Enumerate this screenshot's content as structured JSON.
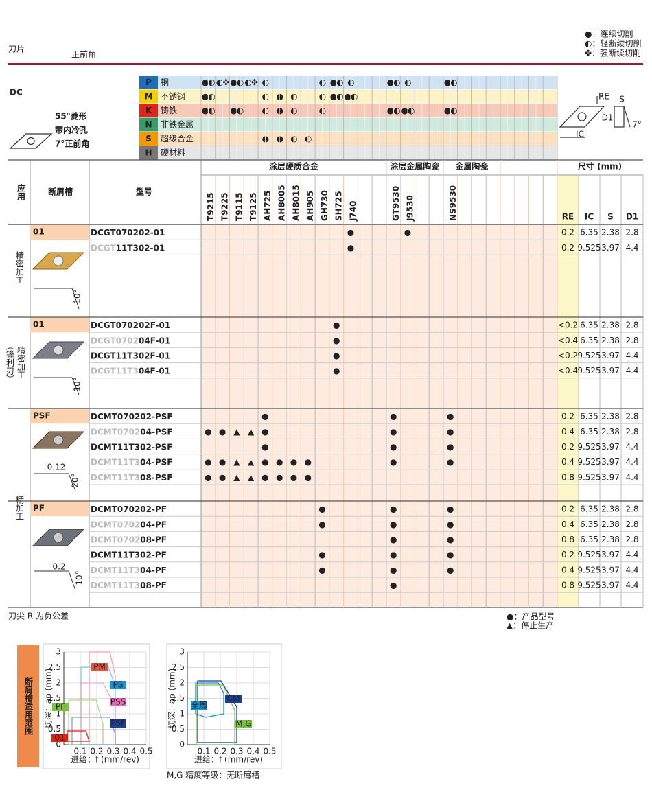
{
  "header": {
    "title": "刀片",
    "subtitle": "正前角",
    "legend": [
      "●：连续切削",
      "◐：轻断续切削",
      "✤：强断续切削"
    ]
  },
  "insert": {
    "code": "DC",
    "description": [
      "55°菱形",
      "带内冷孔",
      "7°正前角"
    ],
    "dims": [
      "RE",
      "S",
      "D1",
      "IC",
      "7°"
    ]
  },
  "materials": [
    {
      "code": "P",
      "name": "钢",
      "marks": {
        "0": "●◐",
        "1": "◐✤",
        "2": "●◐",
        "3": "◐✤",
        "4": "◐",
        "8": "◐",
        "9": "●◐",
        "10": "◐",
        "13": "●◐",
        "14": "◐",
        "17": "●◐"
      }
    },
    {
      "code": "M",
      "name": "不锈钢",
      "marks": {
        "0": "●◐",
        "4": "◐",
        "5": "●",
        "6": "◐",
        "8": "◐",
        "9": "●◐",
        "10": "●◐"
      }
    },
    {
      "code": "K",
      "name": "铸铁",
      "marks": {
        "0": "●◐",
        "2": "●◐",
        "4": "◐",
        "5": "●",
        "6": "◐",
        "8": "◐",
        "13": "●◐",
        "14": "●◐",
        "17": "●◐"
      }
    },
    {
      "code": "N",
      "name": "非铁金属"
    },
    {
      "code": "S",
      "name": "超级合金",
      "marks": {
        "4": "●",
        "5": "●",
        "6": "◐",
        "7": "◐"
      }
    },
    {
      "code": "H",
      "name": "硬材料"
    }
  ],
  "table": {
    "headers": {
      "application": "应用",
      "chipbreaker": "断屑槽",
      "model": "型号",
      "size": "尺寸 (mm)",
      "dims": [
        "RE",
        "IC",
        "S",
        "D1"
      ]
    },
    "grade_groups": [
      {
        "name": "涂层硬质合金",
        "grades": [
          "T9215",
          "T9225",
          "T9115",
          "T9125",
          "AH725",
          "AH8005",
          "AH8015",
          "AH905",
          "GH730",
          "SH725",
          "J740",
          null,
          null
        ]
      },
      {
        "name": "涂层金属陶瓷",
        "grades": [
          "GT9530",
          "J9530",
          null,
          null
        ]
      },
      {
        "name": "金属陶瓷",
        "grades": [
          "NS9530",
          null,
          null,
          null
        ]
      },
      {
        "name": null,
        "grades": [
          null,
          null,
          null,
          null
        ]
      }
    ],
    "applications": [
      "精密加工",
      "（锋利刃）",
      "精密加工",
      "精加工"
    ],
    "groups": [
      {
        "chipbreaker": "01",
        "labels": [
          "10°"
        ],
        "rows": [
          {
            "model": [
              "DCGT070202-01"
            ],
            "marks": {
              "10": "●",
              "14": "●"
            },
            "dims": [
              0.2,
              6.35,
              2.38,
              2.8
            ]
          },
          {
            "model": [
              "DCGT",
              "11T302-01"
            ],
            "marks": {
              "10": "●"
            },
            "dims": [
              0.2,
              9.525,
              3.97,
              4.4
            ]
          }
        ]
      },
      {
        "chipbreaker": "01",
        "labels": [
          "10°"
        ],
        "rows": [
          {
            "model": [
              "DCGT070202F-01"
            ],
            "marks": {
              "9": "●"
            },
            "dims": [
              "<0.2",
              6.35,
              2.38,
              2.8
            ]
          },
          {
            "model": [
              "DCGT0702",
              "04F-01"
            ],
            "marks": {
              "9": "●"
            },
            "dims": [
              "<0.4",
              6.35,
              2.38,
              2.8
            ]
          },
          {
            "model": [
              "DCGT11T302F-01"
            ],
            "marks": {
              "9": "●"
            },
            "dims": [
              "<0.2",
              9.525,
              3.97,
              4.4
            ]
          },
          {
            "model": [
              "DCGT11T3",
              "04F-01"
            ],
            "marks": {
              "9": "●"
            },
            "dims": [
              "<0.4",
              9.525,
              3.97,
              4.4
            ]
          }
        ]
      },
      {
        "chipbreaker": "PSF",
        "labels": [
          "0.12",
          "20°"
        ],
        "rows": [
          {
            "model": [
              "DCMT070202-PSF"
            ],
            "marks": {
              "4": "●",
              "13": "●",
              "17": "●"
            },
            "dims": [
              0.2,
              6.35,
              2.38,
              2.8
            ]
          },
          {
            "model": [
              "DCMT0702",
              "04-PSF"
            ],
            "marks": {
              "0": "●",
              "1": "●",
              "2": "▲",
              "3": "▲",
              "4": "●",
              "13": "●",
              "17": "●"
            },
            "dims": [
              0.4,
              6.35,
              2.38,
              2.8
            ]
          },
          {
            "model": [
              "DCMT11T302-PSF"
            ],
            "marks": {
              "4": "●",
              "13": "●",
              "17": "●"
            },
            "dims": [
              0.2,
              9.525,
              3.97,
              4.4
            ]
          },
          {
            "model": [
              "DCMT11T3",
              "04-PSF"
            ],
            "marks": {
              "0": "●",
              "1": "●",
              "2": "▲",
              "3": "▲",
              "4": "●",
              "5": "●",
              "6": "●",
              "7": "●",
              "13": "●",
              "17": "●"
            },
            "dims": [
              0.4,
              9.525,
              3.97,
              4.4
            ]
          },
          {
            "model": [
              "DCMT11T3",
              "08-PSF"
            ],
            "marks": {
              "0": "●",
              "1": "●",
              "2": "▲",
              "3": "▲",
              "4": "●",
              "5": "●",
              "6": "●",
              "7": "●"
            },
            "dims": [
              0.8,
              9.525,
              3.97,
              4.4
            ]
          }
        ]
      },
      {
        "chipbreaker": "PF",
        "labels": [
          "0.2",
          "10°"
        ],
        "rows": [
          {
            "model": [
              "DCMT070202-PF"
            ],
            "marks": {
              "8": "●",
              "13": "●",
              "17": "●"
            },
            "dims": [
              0.2,
              6.35,
              2.38,
              2.8
            ]
          },
          {
            "model": [
              "DCMT0702",
              "04-PF"
            ],
            "marks": {
              "8": "●",
              "13": "●",
              "17": "●"
            },
            "dims": [
              0.4,
              6.35,
              2.38,
              2.8
            ]
          },
          {
            "model": [
              "DCMT0702",
              "08-PF"
            ],
            "marks": {
              "13": "●",
              "17": "●"
            },
            "dims": [
              0.8,
              6.35,
              2.38,
              2.8
            ]
          },
          {
            "model": [
              "DCMT11T302-PF"
            ],
            "marks": {
              "8": "●",
              "13": "●",
              "17": "●"
            },
            "dims": [
              0.2,
              9.525,
              3.97,
              4.4
            ]
          },
          {
            "model": [
              "DCMT11T3",
              "04-PF"
            ],
            "marks": {
              "8": "●",
              "13": "●",
              "17": "●"
            },
            "dims": [
              0.4,
              9.525,
              3.97,
              4.4
            ]
          },
          {
            "model": [
              "DCMT11T3",
              "08-PF"
            ],
            "marks": {
              "13": "●"
            },
            "dims": [
              0.8,
              9.525,
              3.97,
              4.4
            ]
          }
        ]
      }
    ]
  },
  "notes": {
    "tolerance": "刀尖 R 为负公差",
    "symbols": [
      "●：产品型号",
      "▲：停止生产"
    ]
  },
  "charts": {
    "title": "断屑槽适用范围",
    "note": "M,G 精度等级：无断屑槽",
    "items": [
      {
        "ylabel": "切深：ap (mm)",
        "xlabel": "进给：f (mm/rev)",
        "xlim": [
          0,
          0.5
        ],
        "ylim": [
          0,
          3
        ],
        "xticks": [
          0.1,
          0.2,
          0.3,
          0.4,
          0.5
        ],
        "yticks": [
          0,
          0.5,
          1,
          1.5,
          2,
          2.5,
          3
        ],
        "regions": [
          {
            "name": "PM",
            "color": "#e8513d"
          },
          {
            "name": "PS",
            "color": "#1a8fd0"
          },
          {
            "name": "PSS",
            "color": "#e06ab5"
          },
          {
            "name": "PF",
            "color": "#7cc242"
          },
          {
            "name": "PSF",
            "color": "#1c3f94"
          },
          {
            "name": "01",
            "color": "#e2231a"
          }
        ]
      },
      {
        "ylabel": "切深：ap (mm)",
        "xlabel": "进给：f (mm/rev)",
        "xlim": [
          0,
          0.5
        ],
        "ylim": [
          0,
          3
        ],
        "xticks": [
          0.1,
          0.2,
          0.3,
          0.4,
          0.5
        ],
        "yticks": [
          0,
          0.5,
          1,
          1.5,
          2,
          2.5,
          3
        ],
        "regions": [
          {
            "name": "全周",
            "color": "#1a8fd0"
          },
          {
            "name": "CM",
            "color": "#1c3f94"
          },
          {
            "name": "M,G",
            "color": "#7cc242"
          }
        ]
      }
    ]
  }
}
